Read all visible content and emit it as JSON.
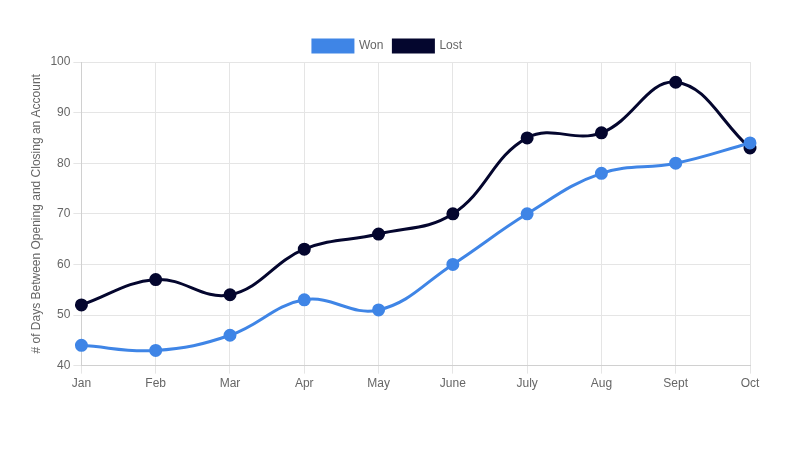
{
  "chart_data": {
    "type": "line",
    "y_label": "# of Days Between Opening and Closing an Account",
    "categories": [
      "Jan",
      "Feb",
      "Mar",
      "Apr",
      "May",
      "June",
      "July",
      "Aug",
      "Sept",
      "Oct"
    ],
    "series": [
      {
        "name": "Won",
        "color": "#3f85e6",
        "values": [
          44,
          43,
          46,
          53,
          51,
          60,
          70,
          78,
          80,
          84
        ]
      },
      {
        "name": "Lost",
        "color": "#04062e",
        "values": [
          52,
          57,
          54,
          63,
          66,
          70,
          85,
          86,
          96,
          83
        ]
      }
    ],
    "ylim": [
      40,
      100
    ],
    "yticks": [
      40,
      50,
      60,
      70,
      80,
      90,
      100
    ],
    "grid": true,
    "legend": "top",
    "marker": "circle",
    "line_style": "solid"
  }
}
